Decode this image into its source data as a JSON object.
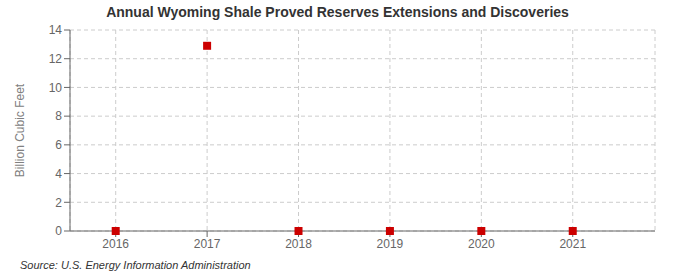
{
  "chart_data": {
    "type": "scatter",
    "title": "Annual Wyoming Shale Proved Reserves Extensions and Discoveries",
    "ylabel": "Billion Cubic Feet",
    "annotations": [
      "Source: U.S. Energy Information Administration"
    ],
    "x": [
      2016,
      2017,
      2018,
      2019,
      2020,
      2021
    ],
    "values": [
      0.0,
      12.9,
      0.0,
      0.0,
      0.0,
      0.0
    ],
    "color": "#cc0000",
    "marker": "square",
    "xlim": [
      2015.5,
      2021.9
    ],
    "xticks": [
      2016,
      2017,
      2018,
      2019,
      2020,
      2021
    ],
    "ylim": [
      0,
      14
    ],
    "yticks": [
      0,
      2,
      4,
      6,
      8,
      10,
      12,
      14
    ],
    "grid": true
  }
}
